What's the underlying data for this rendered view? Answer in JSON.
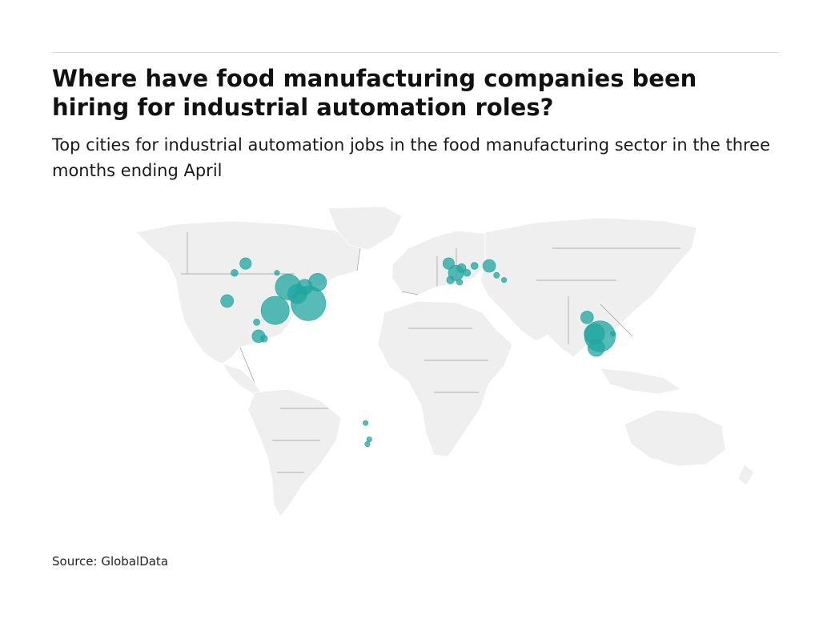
{
  "header": {
    "title": "Where have food manufacturing companies been hiring for industrial automation roles?",
    "subtitle": "Top cities for industrial automation jobs in the food manufacturing sector in the three months ending April"
  },
  "footer": {
    "source": "Source: GlobalData"
  },
  "map": {
    "colors": {
      "land": "#efefef",
      "border": "#9a9a9a",
      "bubble": "#1fa6a0"
    },
    "bubbles": [
      {
        "lon": -112,
        "lat": 53,
        "scale": 0.9
      },
      {
        "lon": -118,
        "lat": 49,
        "scale": 0.55
      },
      {
        "lon": -95,
        "lat": 49,
        "scale": 0.4
      },
      {
        "lon": -89,
        "lat": 43,
        "scale": 2.0
      },
      {
        "lon": -84,
        "lat": 40,
        "scale": 1.5
      },
      {
        "lon": -80,
        "lat": 43,
        "scale": 1.2
      },
      {
        "lon": -73,
        "lat": 45,
        "scale": 1.4
      },
      {
        "lon": -78,
        "lat": 36,
        "scale": 2.7
      },
      {
        "lon": -96,
        "lat": 33,
        "scale": 2.2
      },
      {
        "lon": -122,
        "lat": 37,
        "scale": 1.0
      },
      {
        "lon": -106,
        "lat": 28,
        "scale": 0.5
      },
      {
        "lon": -105,
        "lat": 22,
        "scale": 1.0
      },
      {
        "lon": -102,
        "lat": 21,
        "scale": 0.55
      },
      {
        "lon": -2,
        "lat": 53,
        "scale": 0.9
      },
      {
        "lon": 2,
        "lat": 49,
        "scale": 1.2
      },
      {
        "lon": 5,
        "lat": 51,
        "scale": 0.7
      },
      {
        "lon": 8,
        "lat": 49,
        "scale": 0.55
      },
      {
        "lon": 12,
        "lat": 52,
        "scale": 0.55
      },
      {
        "lon": -1,
        "lat": 46,
        "scale": 0.6
      },
      {
        "lon": 4,
        "lat": 45,
        "scale": 0.45
      },
      {
        "lon": 20,
        "lat": 52,
        "scale": 1.0
      },
      {
        "lon": 24,
        "lat": 48,
        "scale": 0.45
      },
      {
        "lon": 28,
        "lat": 46,
        "scale": 0.4
      },
      {
        "lon": 73,
        "lat": 30,
        "scale": 1.0
      },
      {
        "lon": 77,
        "lat": 23,
        "scale": 1.6
      },
      {
        "lon": 80,
        "lat": 22,
        "scale": 2.4
      },
      {
        "lon": 78,
        "lat": 17,
        "scale": 1.3
      },
      {
        "lon": 87,
        "lat": 23,
        "scale": 0.4
      },
      {
        "lon": -47,
        "lat": -15,
        "scale": 0.4
      },
      {
        "lon": -45,
        "lat": -22,
        "scale": 0.4
      },
      {
        "lon": -46,
        "lat": -24,
        "scale": 0.4
      }
    ]
  }
}
